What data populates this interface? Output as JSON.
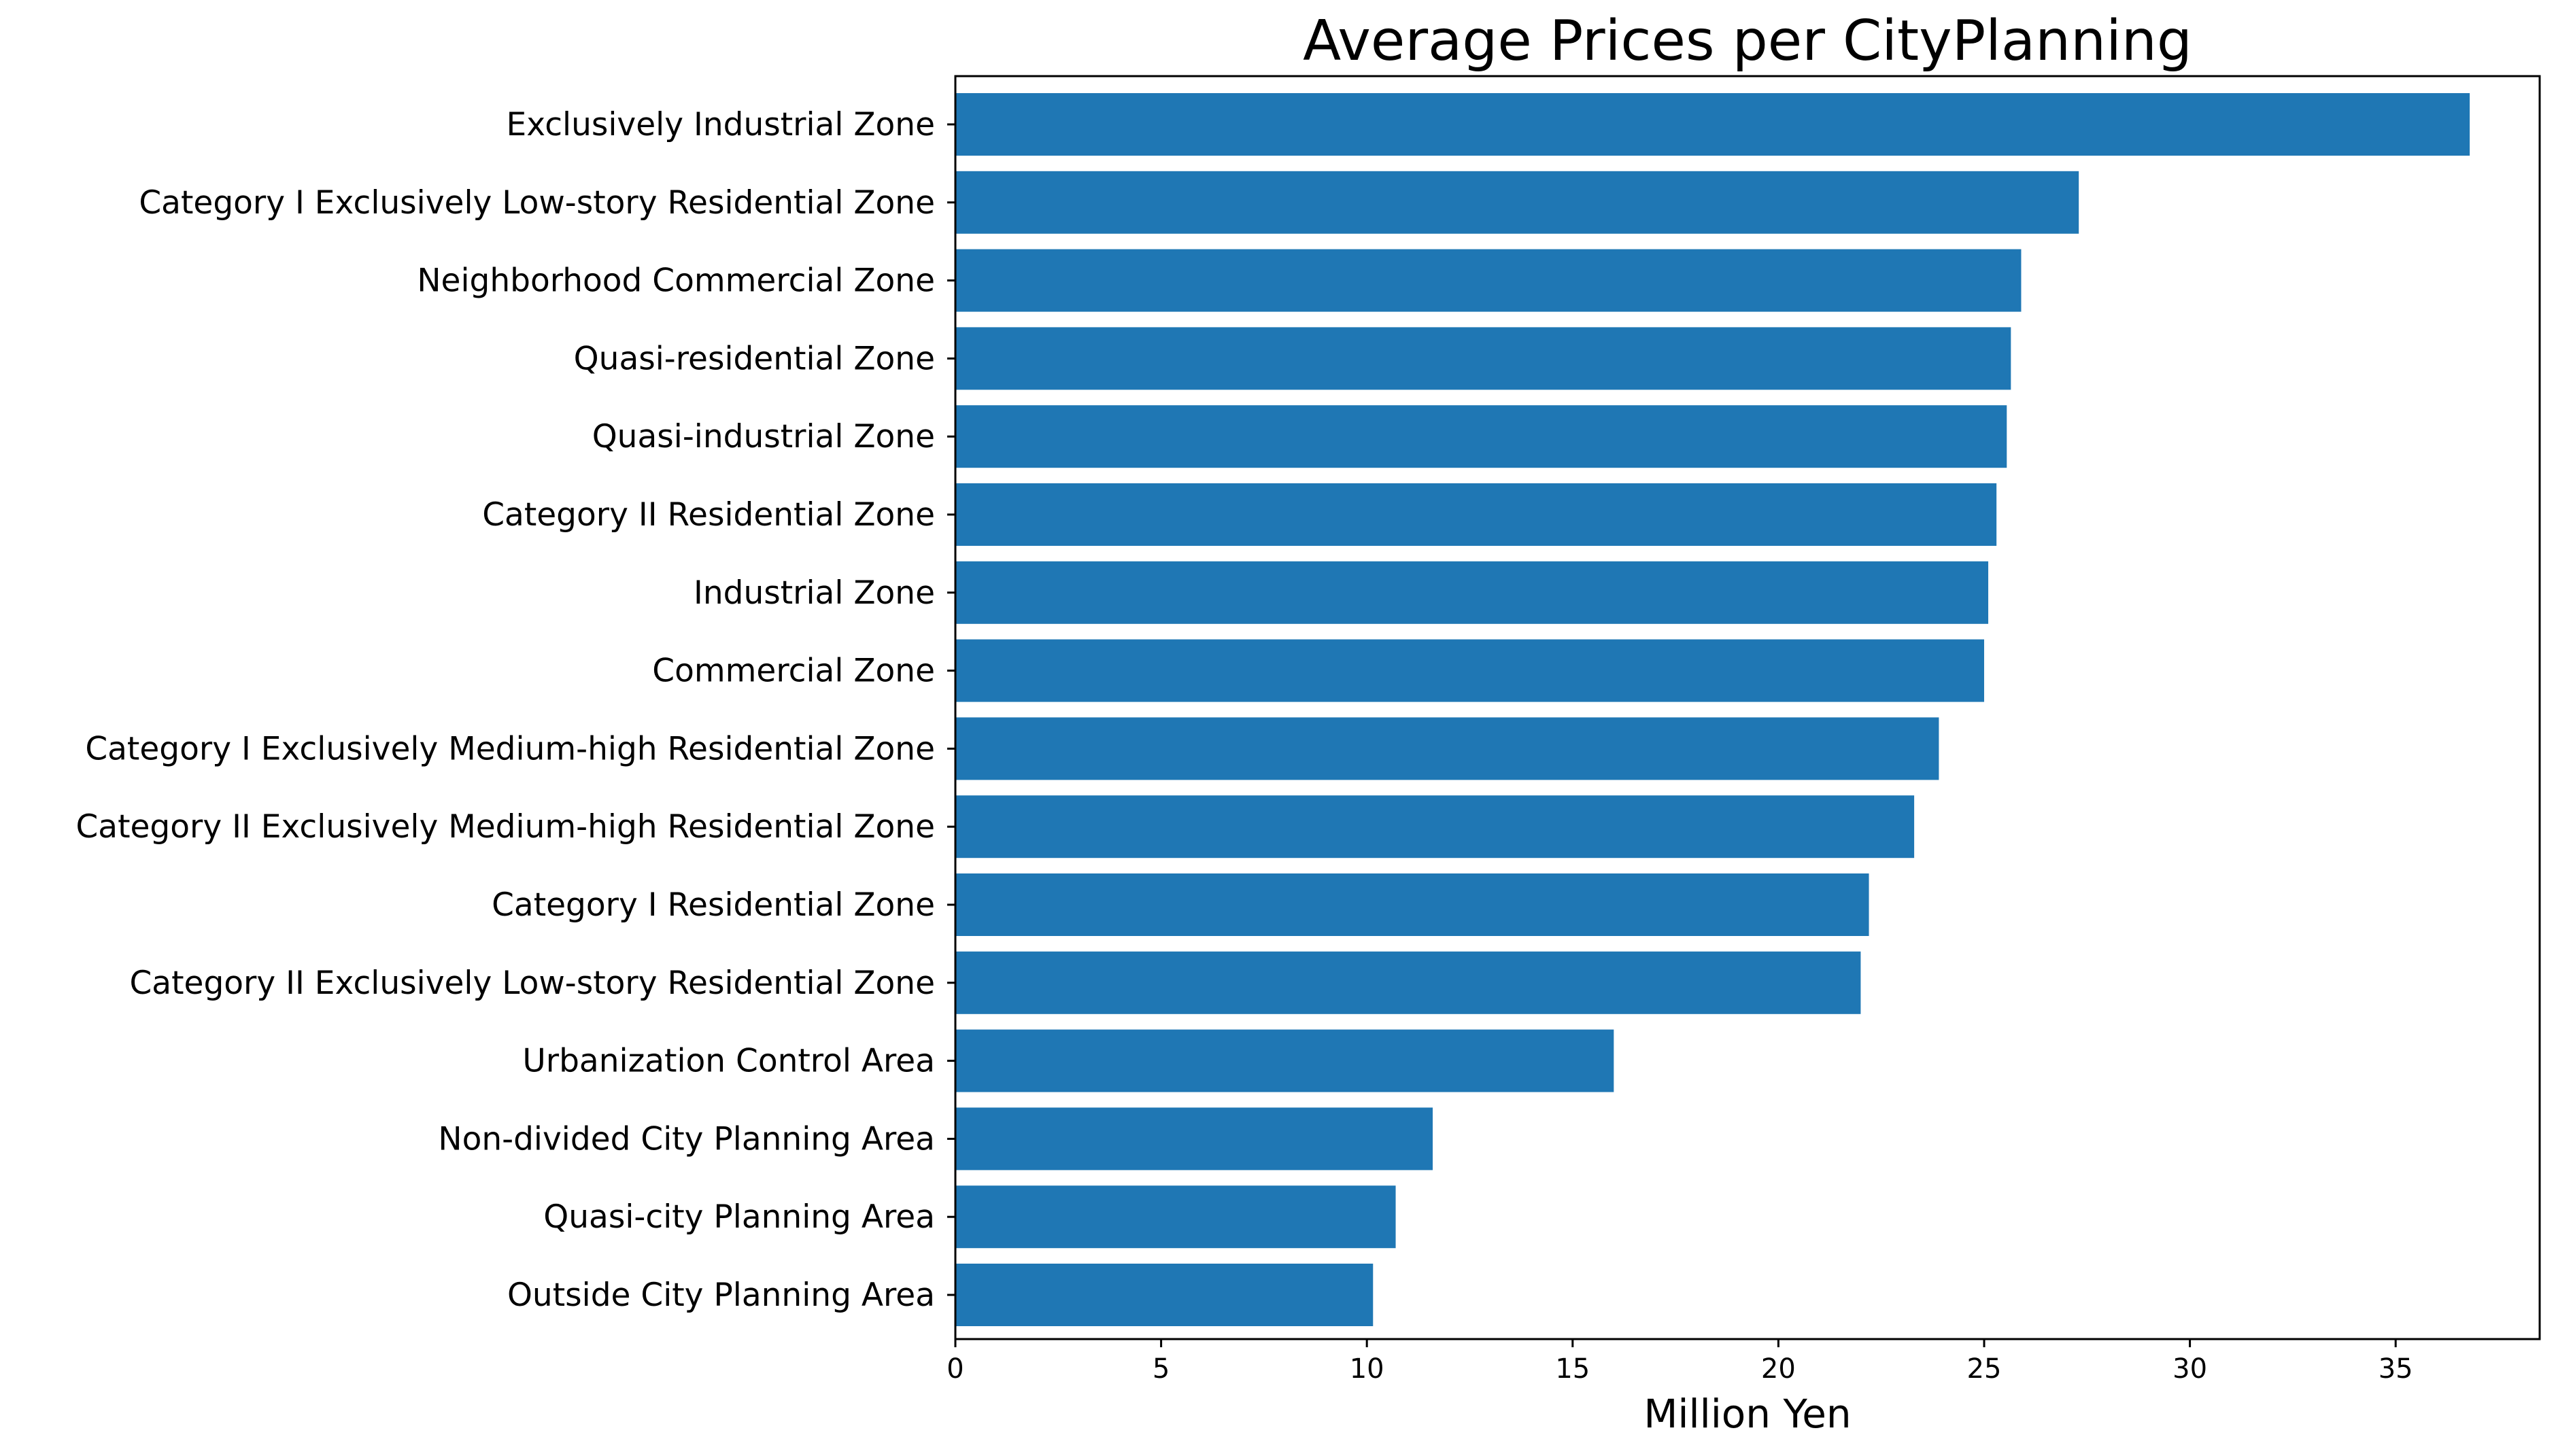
{
  "chart_data": {
    "type": "bar",
    "orientation": "horizontal",
    "title": "Average Prices per CityPlanning",
    "xlabel": "Million Yen",
    "ylabel": "",
    "xlim": [
      0,
      38.5
    ],
    "xticks": [
      0,
      5,
      10,
      15,
      20,
      25,
      30,
      35
    ],
    "grid": false,
    "bar_color": "#1f77b4",
    "categories": [
      "Exclusively Industrial Zone",
      "Category I Exclusively Low-story Residential Zone",
      "Neighborhood Commercial Zone",
      "Quasi-residential Zone",
      "Quasi-industrial Zone",
      "Category II Residential Zone",
      "Industrial Zone",
      "Commercial Zone",
      "Category I Exclusively Medium-high Residential Zone",
      "Category II Exclusively Medium-high Residential Zone",
      "Category I Residential Zone",
      "Category II Exclusively Low-story Residential Zone",
      "Urbanization Control Area",
      "Non-divided City Planning Area",
      "Quasi-city Planning Area",
      "Outside City Planning Area"
    ],
    "values": [
      36.8,
      27.3,
      25.9,
      25.65,
      25.55,
      25.3,
      25.1,
      25.0,
      23.9,
      23.3,
      22.2,
      22.0,
      16.0,
      11.6,
      10.7,
      10.15
    ]
  }
}
